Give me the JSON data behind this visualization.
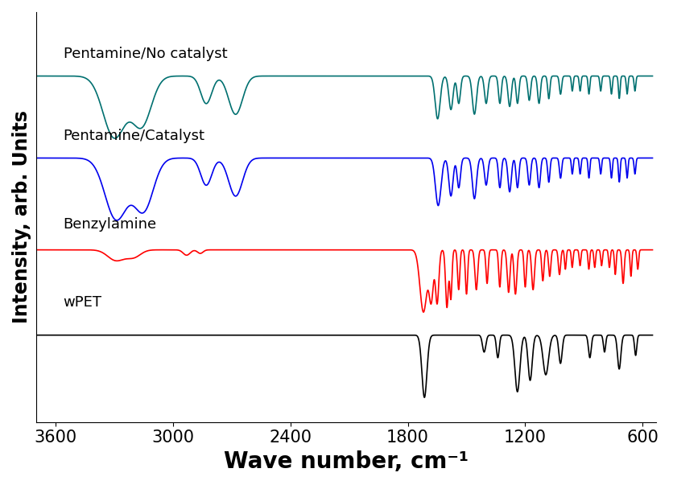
{
  "xlabel": "Wave number, cm⁻¹",
  "ylabel": "Intensity, arb. Units",
  "xlabel_fontsize": 20,
  "ylabel_fontsize": 17,
  "tick_fontsize": 15,
  "xlim": [
    3700,
    530
  ],
  "xticks": [
    3600,
    3000,
    2400,
    1800,
    1200,
    600
  ],
  "colors": {
    "wPET": "#000000",
    "Benzylamine": "#ff0000",
    "Pentamine_Catalyst": "#0000ee",
    "Pentamine_No_catalyst": "#007070"
  },
  "labels": {
    "wPET": "wPET",
    "Benzylamine": "Benzylamine",
    "Pentamine_Catalyst": "Pentamine/Catalyst",
    "Pentamine_No_catalyst": "Pentamine/No catalyst"
  },
  "label_fontsize": 13
}
